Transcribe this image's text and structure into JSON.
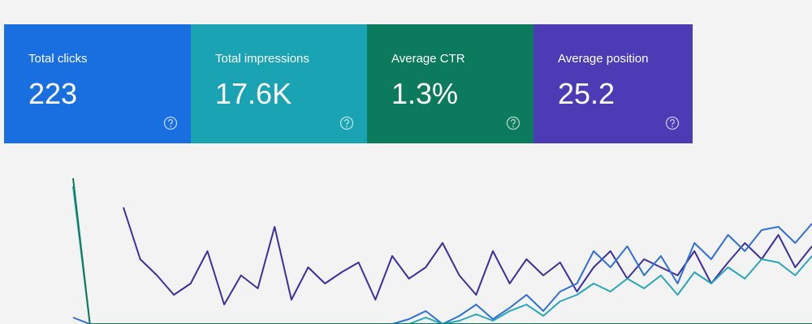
{
  "cards": [
    {
      "label": "Total clicks",
      "value": "223",
      "color": "#1a6fe0"
    },
    {
      "label": "Total impressions",
      "value": "17.6K",
      "color": "#1aa3b3"
    },
    {
      "label": "Average CTR",
      "value": "1.3%",
      "color": "#0c7a5c"
    },
    {
      "label": "Average position",
      "value": "25.2",
      "color": "#4b3bb5"
    }
  ],
  "chart_data": {
    "type": "line",
    "series": [
      {
        "color": "#3d2f9e",
        "values": [
          null,
          null,
          null,
          72,
          40,
          30,
          18,
          25,
          45,
          12,
          30,
          22,
          60,
          15,
          35,
          25,
          32,
          38,
          15,
          42,
          28,
          35,
          50,
          30,
          18,
          45,
          25,
          40,
          30,
          38,
          20,
          35,
          45,
          28,
          40,
          35,
          30,
          45,
          25,
          38,
          50,
          40,
          55,
          35,
          48
        ]
      },
      {
        "color": "#2f6fd6",
        "values": [
          4,
          0,
          0,
          0,
          0,
          0,
          0,
          0,
          0,
          0,
          0,
          0,
          0,
          0,
          0,
          0,
          0,
          0,
          0,
          0,
          3,
          8,
          0,
          5,
          12,
          3,
          10,
          18,
          8,
          20,
          25,
          45,
          35,
          48,
          30,
          42,
          25,
          50,
          40,
          55,
          45,
          58,
          60,
          50,
          62
        ]
      },
      {
        "color": "#28a6b8",
        "values": [
          85,
          0,
          0,
          0,
          0,
          0,
          0,
          0,
          0,
          0,
          0,
          0,
          0,
          0,
          0,
          0,
          0,
          0,
          0,
          0,
          0,
          4,
          0,
          2,
          6,
          2,
          8,
          12,
          5,
          14,
          18,
          25,
          20,
          28,
          22,
          30,
          18,
          32,
          25,
          35,
          28,
          40,
          38,
          30,
          42
        ]
      },
      {
        "color": "#0f7a5a",
        "values": [
          90,
          0,
          0,
          0,
          0,
          0,
          0,
          0,
          0,
          0,
          0,
          0,
          0,
          0,
          0,
          0,
          0,
          0,
          0,
          0,
          0,
          0,
          0,
          0,
          0,
          0,
          0,
          0,
          0,
          0,
          0,
          0,
          0,
          0,
          0,
          0,
          0,
          0,
          0,
          0,
          0,
          0,
          0,
          0,
          0
        ]
      }
    ]
  }
}
